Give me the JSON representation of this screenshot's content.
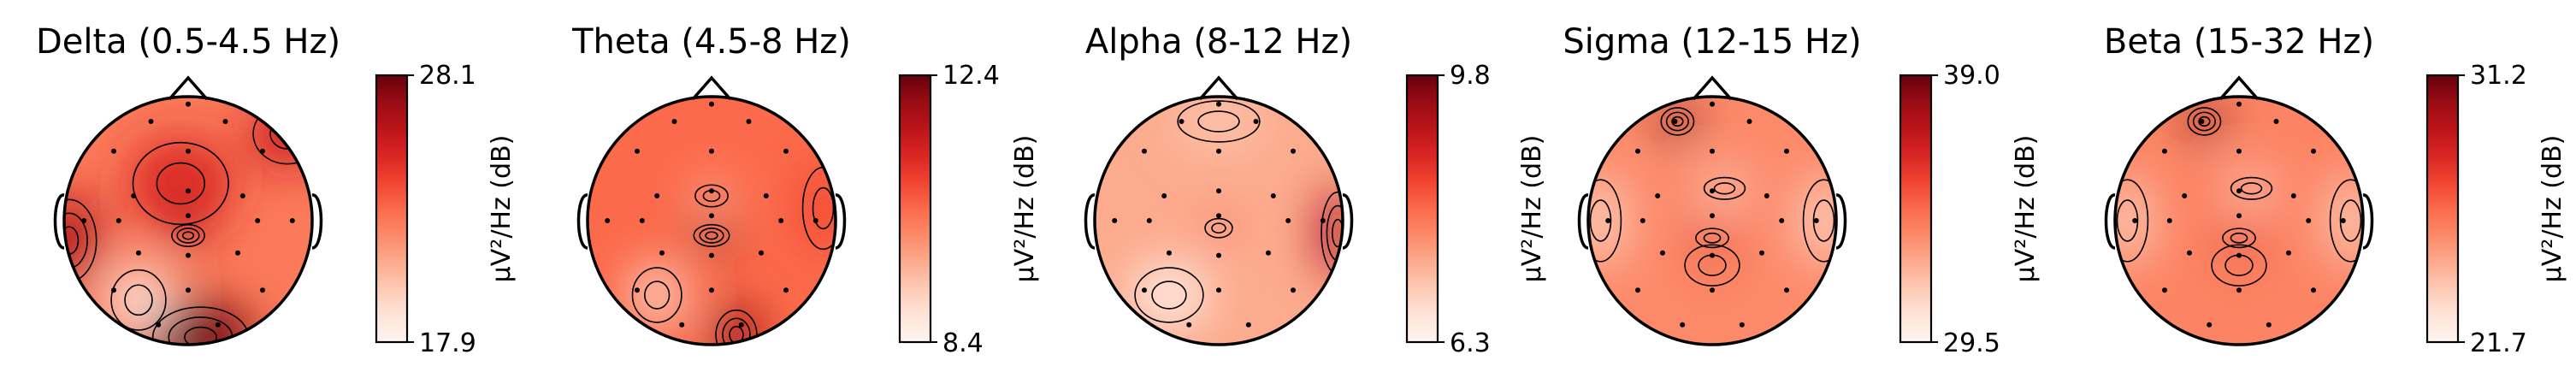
{
  "chart_data": [
    {
      "type": "heatmap",
      "subtype": "topomap",
      "title": "Delta (0.5-4.5 Hz)",
      "colorbar": {
        "min": 17.9,
        "max": 28.1,
        "ticks": [
          "28.1",
          "17.9"
        ],
        "label": "µV²/Hz (dB)"
      },
      "colormap": "Reds",
      "hotspots": [
        {
          "u": 0.02,
          "v": 0.58,
          "level": 0.85,
          "su": 0.2,
          "sv": 0.3
        },
        {
          "u": 0.55,
          "v": 0.97,
          "level": 1.0,
          "su": 0.35,
          "sv": 0.22
        },
        {
          "u": 0.47,
          "v": 0.35,
          "level": 0.7,
          "su": 0.35,
          "sv": 0.3
        },
        {
          "u": 0.5,
          "v": 0.56,
          "level": 0.9,
          "su": 0.12,
          "sv": 0.08
        },
        {
          "u": 0.9,
          "v": 0.15,
          "level": 0.75,
          "su": 0.25,
          "sv": 0.22
        },
        {
          "u": 0.3,
          "v": 0.82,
          "level": -0.6,
          "su": 0.2,
          "sv": 0.22
        }
      ],
      "base": 0.45
    },
    {
      "type": "heatmap",
      "subtype": "topomap",
      "title": "Theta (4.5-8 Hz)",
      "colorbar": {
        "min": 8.4,
        "max": 12.4,
        "ticks": [
          "12.4",
          "8.4"
        ],
        "label": "µV²/Hz (dB)"
      },
      "colormap": "Reds",
      "hotspots": [
        {
          "u": 0.5,
          "v": 0.56,
          "level": 1.0,
          "su": 0.13,
          "sv": 0.08
        },
        {
          "u": 0.6,
          "v": 0.96,
          "level": 0.95,
          "su": 0.15,
          "sv": 0.18
        },
        {
          "u": 0.95,
          "v": 0.45,
          "level": 0.6,
          "su": 0.15,
          "sv": 0.3
        },
        {
          "u": 0.5,
          "v": 0.4,
          "level": -0.35,
          "su": 0.12,
          "sv": 0.08
        },
        {
          "u": 0.28,
          "v": 0.8,
          "level": -0.4,
          "su": 0.18,
          "sv": 0.2
        }
      ],
      "base": 0.5
    },
    {
      "type": "heatmap",
      "subtype": "topomap",
      "title": "Alpha (8-12 Hz)",
      "colorbar": {
        "min": 6.3,
        "max": 9.8,
        "ticks": [
          "9.8",
          "6.3"
        ],
        "label": "µV²/Hz (dB)"
      },
      "colormap": "Reds",
      "hotspots": [
        {
          "u": 0.98,
          "v": 0.55,
          "level": 0.85,
          "su": 0.12,
          "sv": 0.3
        },
        {
          "u": 0.5,
          "v": 0.53,
          "level": 0.55,
          "su": 0.1,
          "sv": 0.07
        },
        {
          "u": 0.5,
          "v": 0.1,
          "level": 0.2,
          "su": 0.3,
          "sv": 0.15
        },
        {
          "u": 0.3,
          "v": 0.8,
          "level": -0.3,
          "su": 0.25,
          "sv": 0.2
        }
      ],
      "base": 0.3
    },
    {
      "type": "heatmap",
      "subtype": "topomap",
      "title": "Sigma (12-15 Hz)",
      "colorbar": {
        "min": 29.5,
        "max": 39.0,
        "ticks": [
          "39.0",
          "29.5"
        ],
        "label": "µV²/Hz (dB)"
      },
      "colormap": "Reds",
      "hotspots": [
        {
          "u": 0.36,
          "v": 0.1,
          "level": 1.0,
          "su": 0.12,
          "sv": 0.1
        },
        {
          "u": 0.5,
          "v": 0.57,
          "level": 0.75,
          "su": 0.12,
          "sv": 0.07
        },
        {
          "u": 0.5,
          "v": 0.68,
          "level": 0.45,
          "su": 0.2,
          "sv": 0.15
        },
        {
          "u": 0.55,
          "v": 0.37,
          "level": -0.5,
          "su": 0.15,
          "sv": 0.08
        },
        {
          "u": 0.05,
          "v": 0.5,
          "level": -0.25,
          "su": 0.15,
          "sv": 0.3
        },
        {
          "u": 0.95,
          "v": 0.5,
          "level": -0.25,
          "su": 0.15,
          "sv": 0.3
        }
      ],
      "base": 0.4
    },
    {
      "type": "heatmap",
      "subtype": "topomap",
      "title": "Beta (15-32 Hz)",
      "colorbar": {
        "min": 21.7,
        "max": 31.2,
        "ticks": [
          "31.2",
          "21.7"
        ],
        "label": "µV²/Hz (dB)"
      },
      "colormap": "Reds",
      "hotspots": [
        {
          "u": 0.36,
          "v": 0.1,
          "level": 1.0,
          "su": 0.12,
          "sv": 0.1
        },
        {
          "u": 0.5,
          "v": 0.57,
          "level": 0.75,
          "su": 0.12,
          "sv": 0.07
        },
        {
          "u": 0.5,
          "v": 0.68,
          "level": 0.45,
          "su": 0.2,
          "sv": 0.15
        },
        {
          "u": 0.55,
          "v": 0.37,
          "level": -0.5,
          "su": 0.15,
          "sv": 0.08
        },
        {
          "u": 0.05,
          "v": 0.5,
          "level": -0.25,
          "su": 0.15,
          "sv": 0.3
        },
        {
          "u": 0.95,
          "v": 0.5,
          "level": -0.25,
          "su": 0.15,
          "sv": 0.3
        }
      ],
      "base": 0.42
    }
  ]
}
